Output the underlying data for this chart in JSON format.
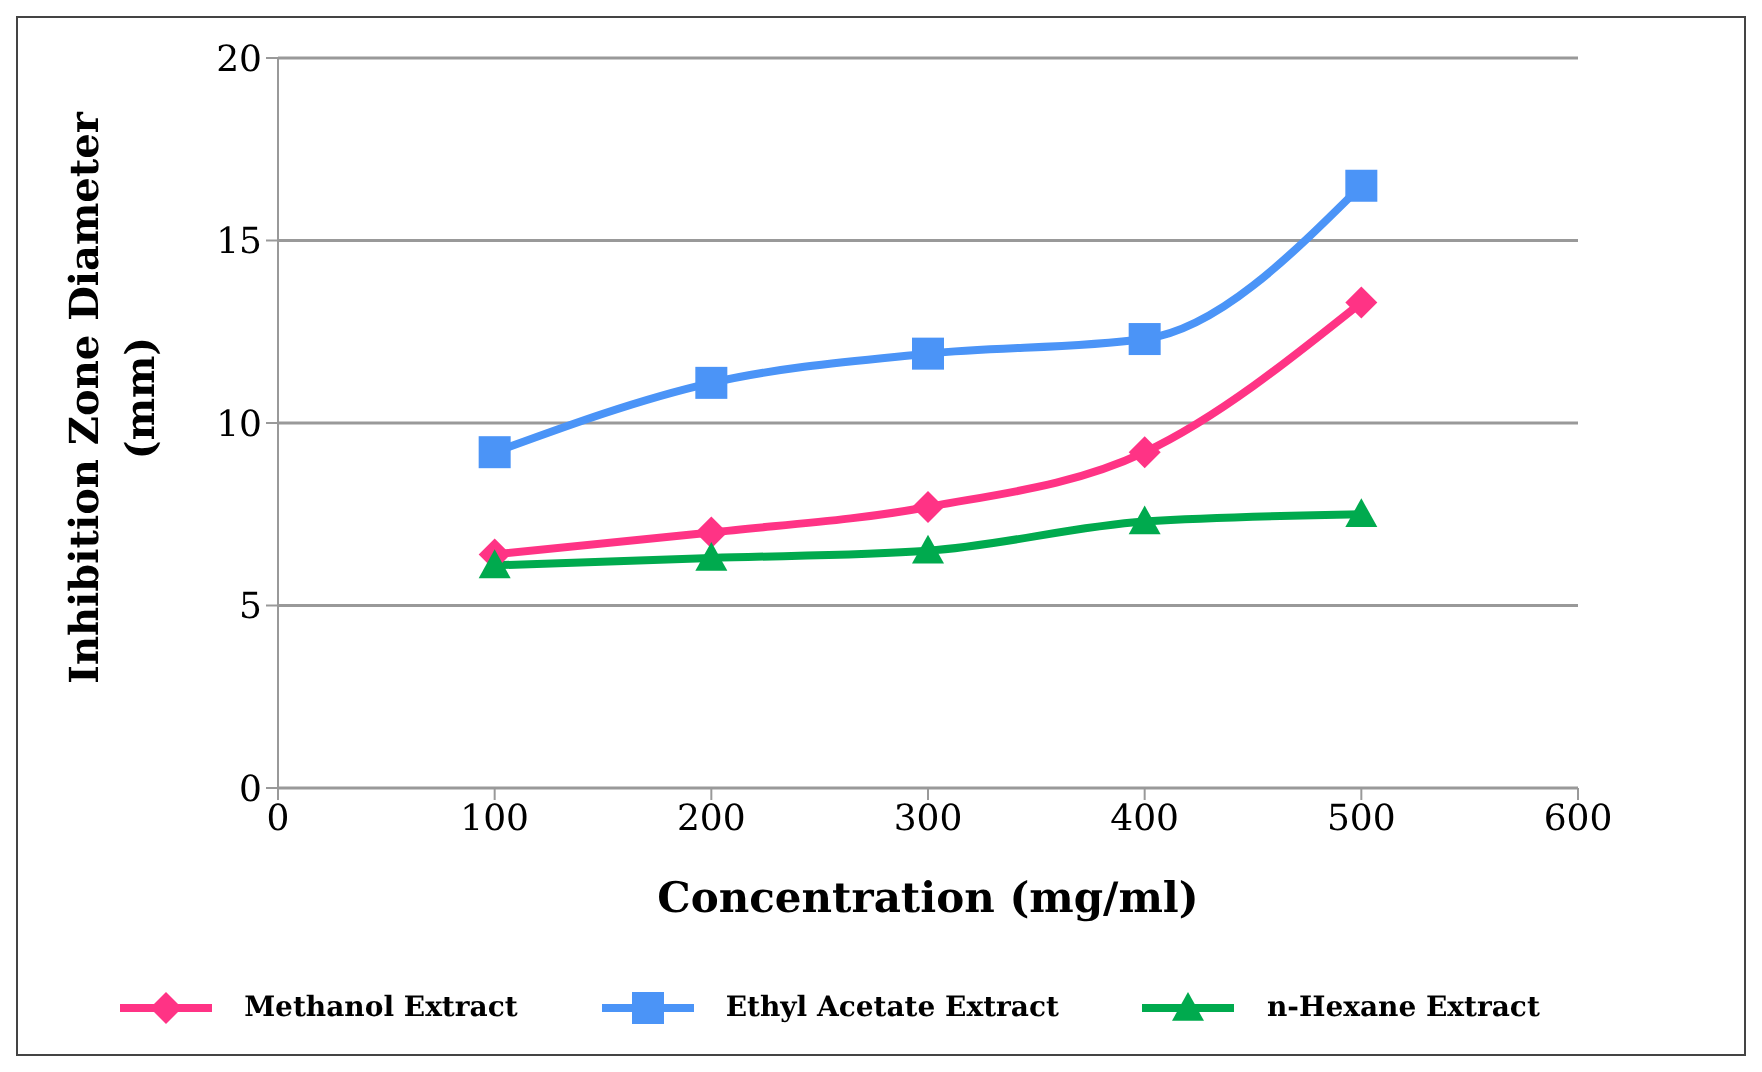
{
  "chart_data": {
    "type": "line",
    "xlabel": "Concentration (mg/ml)",
    "ylabel": "Inhibition Zone Diameter (mm)",
    "x": [
      100,
      200,
      300,
      400,
      500
    ],
    "series": [
      {
        "name": "Methanol Extract",
        "color": "#ff3385",
        "marker": "diamond",
        "values": [
          6.4,
          7.0,
          7.7,
          9.2,
          13.3
        ]
      },
      {
        "name": "Ethyl Acetate Extract",
        "color": "#4b94f7",
        "marker": "square",
        "values": [
          9.2,
          11.1,
          11.9,
          12.3,
          16.5
        ]
      },
      {
        "name": "n-Hexane Extract",
        "color": "#00aa4e",
        "marker": "triangle",
        "values": [
          6.1,
          6.3,
          6.5,
          7.3,
          7.5
        ]
      }
    ],
    "xlim": [
      0,
      600
    ],
    "xticks": [
      0,
      100,
      200,
      300,
      400,
      500,
      600
    ],
    "ylim": [
      0,
      20
    ],
    "yticks": [
      0,
      5,
      10,
      15,
      20
    ],
    "grid": "y",
    "legend": "bottom",
    "line_style": "solid"
  }
}
